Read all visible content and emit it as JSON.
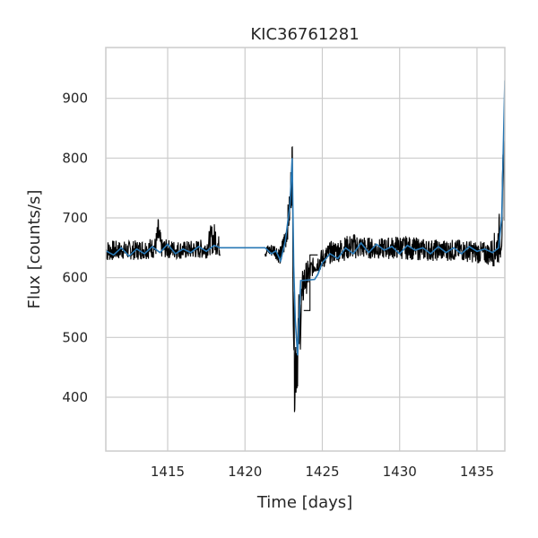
{
  "chart_data": {
    "type": "line",
    "title": "KIC36761281",
    "xlabel": "Time [days]",
    "ylabel": "Flux [counts/s]",
    "xlim": [
      1411,
      1436.8
    ],
    "ylim": [
      310,
      985
    ],
    "x_ticks": [
      1415,
      1420,
      1425,
      1430,
      1435
    ],
    "y_ticks": [
      400,
      500,
      600,
      700,
      800,
      900
    ],
    "grid": true,
    "series": [
      {
        "kind": "raw",
        "color": "#000000",
        "envelope": [
          {
            "x": 1411.0,
            "low": 618,
            "high": 672
          },
          {
            "x": 1412.0,
            "low": 624,
            "high": 668
          },
          {
            "x": 1413.0,
            "low": 622,
            "high": 670
          },
          {
            "x": 1414.2,
            "low": 625,
            "high": 676
          },
          {
            "x": 1414.4,
            "low": 630,
            "high": 716
          },
          {
            "x": 1414.6,
            "low": 626,
            "high": 672
          },
          {
            "x": 1416.0,
            "low": 624,
            "high": 668
          },
          {
            "x": 1417.5,
            "low": 625,
            "high": 672
          },
          {
            "x": 1417.8,
            "low": 628,
            "high": 700
          },
          {
            "x": 1418.1,
            "low": 626,
            "high": 705
          },
          {
            "x": 1418.4,
            "low": 628,
            "high": 666
          },
          {
            "x": 1421.3,
            "low": 628,
            "high": 660
          },
          {
            "x": 1421.9,
            "low": 630,
            "high": 664
          },
          {
            "x": 1422.3,
            "low": 612,
            "high": 660
          },
          {
            "x": 1422.6,
            "low": 630,
            "high": 700
          },
          {
            "x": 1422.9,
            "low": 670,
            "high": 760
          },
          {
            "x": 1423.05,
            "low": 700,
            "high": 885
          },
          {
            "x": 1423.15,
            "low": 380,
            "high": 700
          },
          {
            "x": 1423.2,
            "low": 340,
            "high": 560
          },
          {
            "x": 1423.35,
            "low": 360,
            "high": 600
          },
          {
            "x": 1423.5,
            "low": 420,
            "high": 610
          },
          {
            "x": 1423.8,
            "low": 545,
            "high": 640
          },
          {
            "x": 1424.4,
            "low": 598,
            "high": 640
          },
          {
            "x": 1424.7,
            "low": 600,
            "high": 650
          },
          {
            "x": 1425.5,
            "low": 615,
            "high": 668
          },
          {
            "x": 1427.0,
            "low": 622,
            "high": 684
          },
          {
            "x": 1428.5,
            "low": 624,
            "high": 672
          },
          {
            "x": 1430.0,
            "low": 622,
            "high": 680
          },
          {
            "x": 1432.0,
            "low": 620,
            "high": 672
          },
          {
            "x": 1434.0,
            "low": 620,
            "high": 672
          },
          {
            "x": 1435.8,
            "low": 612,
            "high": 668
          },
          {
            "x": 1436.3,
            "low": 602,
            "high": 700
          },
          {
            "x": 1436.6,
            "low": 610,
            "high": 760
          },
          {
            "x": 1436.8,
            "low": 660,
            "high": 958
          }
        ]
      },
      {
        "kind": "smoothed",
        "color": "#2878b5",
        "points": [
          [
            1411.0,
            645
          ],
          [
            1411.5,
            638
          ],
          [
            1412.0,
            650
          ],
          [
            1412.5,
            636
          ],
          [
            1413.0,
            648
          ],
          [
            1413.5,
            640
          ],
          [
            1414.0,
            652
          ],
          [
            1414.5,
            642
          ],
          [
            1415.0,
            656
          ],
          [
            1415.5,
            640
          ],
          [
            1416.0,
            648
          ],
          [
            1416.5,
            642
          ],
          [
            1417.0,
            652
          ],
          [
            1417.5,
            644
          ],
          [
            1418.0,
            654
          ],
          [
            1418.4,
            650
          ],
          [
            1421.3,
            650
          ],
          [
            1421.7,
            640
          ],
          [
            1422.0,
            645
          ],
          [
            1422.3,
            628
          ],
          [
            1422.6,
            660
          ],
          [
            1422.9,
            720
          ],
          [
            1423.05,
            800
          ],
          [
            1423.15,
            620
          ],
          [
            1423.25,
            530
          ],
          [
            1423.4,
            470
          ],
          [
            1423.6,
            595
          ],
          [
            1424.5,
            597
          ],
          [
            1424.7,
            605
          ],
          [
            1425.0,
            625
          ],
          [
            1425.5,
            640
          ],
          [
            1426.0,
            632
          ],
          [
            1426.5,
            650
          ],
          [
            1427.0,
            640
          ],
          [
            1427.5,
            658
          ],
          [
            1428.0,
            642
          ],
          [
            1428.5,
            656
          ],
          [
            1429.0,
            646
          ],
          [
            1429.5,
            652
          ],
          [
            1430.0,
            640
          ],
          [
            1430.5,
            654
          ],
          [
            1431.0,
            646
          ],
          [
            1431.5,
            650
          ],
          [
            1432.0,
            640
          ],
          [
            1432.5,
            652
          ],
          [
            1433.0,
            642
          ],
          [
            1433.5,
            650
          ],
          [
            1434.0,
            640
          ],
          [
            1434.5,
            652
          ],
          [
            1435.0,
            644
          ],
          [
            1435.5,
            648
          ],
          [
            1436.0,
            642
          ],
          [
            1436.4,
            650
          ],
          [
            1436.6,
            700
          ],
          [
            1436.8,
            930
          ]
        ]
      }
    ]
  }
}
